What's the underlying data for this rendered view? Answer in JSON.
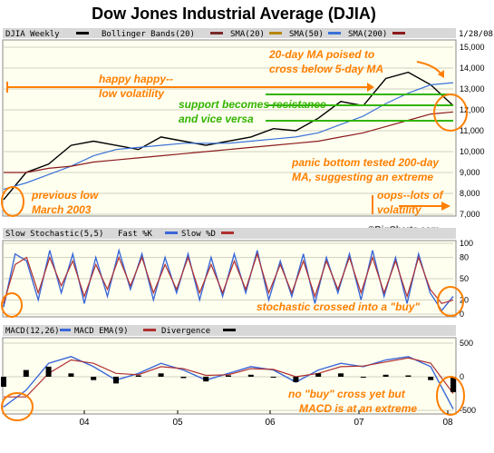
{
  "page_title": "Dow Jones Industrial Average (DJIA)",
  "watermark": "©BigCharts.com",
  "colors": {
    "brand_orange": "#ff7f00",
    "annotation_green": "#33b400",
    "panel_bg": "#fffff0",
    "legend_bg": "#d8d8d8",
    "price": "#000000",
    "bollinger": "#7a2a2a",
    "sma20": "#b8860b",
    "sma50": "#3a72d8",
    "sma200": "#8b1a1a",
    "fast_k": "#3b68d8",
    "slow_d": "#b03030",
    "macd": "#3b68d8",
    "signal": "#b03030",
    "divergence": "#000000"
  },
  "chart_data": [
    {
      "type": "line",
      "title": "DJIA Weekly",
      "date_label": "1/28/08",
      "legend": [
        "DJIA Weekly",
        "Bollinger Bands(20)",
        "SMA(20)",
        "SMA(50)",
        "SMA(200)"
      ],
      "x_ticks": [
        "04",
        "05",
        "06",
        "07",
        "08"
      ],
      "x": [
        "2003-03",
        "2003-06",
        "2003-09",
        "2003-12",
        "2004-03",
        "2004-06",
        "2004-09",
        "2004-12",
        "2005-03",
        "2005-06",
        "2005-09",
        "2005-12",
        "2006-03",
        "2006-06",
        "2006-09",
        "2006-12",
        "2007-03",
        "2007-06",
        "2007-09",
        "2007-12",
        "2008-01"
      ],
      "ylim": [
        7000,
        15000
      ],
      "y_ticks": [
        "15,000",
        "14,000",
        "13,000",
        "12,000",
        "11,000",
        "10,000",
        "9,000",
        "8,000",
        "7,000"
      ],
      "series": [
        {
          "name": "DJIA Weekly",
          "values": [
            7700,
            9000,
            9400,
            10300,
            10500,
            10300,
            10100,
            10700,
            10500,
            10300,
            10500,
            10700,
            11100,
            11000,
            11600,
            12400,
            12200,
            13500,
            13800,
            13200,
            12200
          ]
        },
        {
          "name": "SMA(50)",
          "values": [
            8200,
            8500,
            8900,
            9300,
            9800,
            10100,
            10200,
            10300,
            10400,
            10400,
            10400,
            10500,
            10600,
            10700,
            10900,
            11300,
            11700,
            12300,
            12800,
            13200,
            13300
          ]
        },
        {
          "name": "SMA(200)",
          "values": [
            9000,
            9000,
            9200,
            9300,
            9500,
            9600,
            9700,
            9800,
            9900,
            10000,
            10100,
            10200,
            10300,
            10400,
            10500,
            10700,
            10900,
            11200,
            11500,
            11800,
            11900
          ]
        }
      ],
      "annotations": [
        "happy happy--",
        "low volatility",
        "20-day MA poised to",
        "cross below 5-day MA",
        "support becomes resistance",
        "and vice versa",
        "panic bottom tested 200-day",
        "MA, suggesting an extreme",
        "previous low",
        "March 2003",
        "oops--lots of",
        "volatility"
      ]
    },
    {
      "type": "line",
      "title": "Slow Stochastic(5,5)",
      "legend": [
        "Slow Stochastic(5,5)",
        "Fast %K",
        "Slow %D"
      ],
      "ylim": [
        0,
        100
      ],
      "y_ticks": [
        "100",
        "80",
        "50",
        "20",
        "0"
      ],
      "series": [
        {
          "name": "Fast %K",
          "values": [
            10,
            85,
            75,
            20,
            90,
            30,
            85,
            15,
            80,
            25,
            90,
            35,
            85,
            20,
            80,
            30,
            85,
            20,
            80,
            25,
            85,
            30,
            90,
            20,
            75,
            25,
            85,
            15,
            80,
            30,
            85,
            20,
            90,
            25,
            80,
            15,
            85,
            30,
            5,
            25
          ]
        },
        {
          "name": "Slow %D",
          "values": [
            15,
            70,
            80,
            30,
            80,
            40,
            75,
            25,
            70,
            35,
            80,
            40,
            80,
            30,
            70,
            35,
            80,
            30,
            70,
            30,
            75,
            35,
            85,
            30,
            70,
            30,
            75,
            25,
            75,
            35,
            80,
            30,
            80,
            30,
            75,
            25,
            80,
            35,
            15,
            20
          ]
        }
      ],
      "annotations": [
        "stochastic crossed into a \"buy\""
      ]
    },
    {
      "type": "line",
      "title": "MACD(12,26)",
      "legend": [
        "MACD(12,26)",
        "MACD EMA(9)",
        "Divergence"
      ],
      "ylim": [
        -500,
        500
      ],
      "y_ticks": [
        "500",
        "0",
        "-500"
      ],
      "series": [
        {
          "name": "MACD(12,26)",
          "values": [
            -450,
            -200,
            200,
            300,
            150,
            -50,
            50,
            200,
            100,
            -50,
            50,
            150,
            100,
            -80,
            100,
            200,
            150,
            250,
            300,
            150,
            -480
          ]
        },
        {
          "name": "MACD EMA(9)",
          "values": [
            -300,
            -300,
            50,
            250,
            200,
            50,
            30,
            150,
            120,
            20,
            30,
            120,
            110,
            0,
            50,
            150,
            160,
            220,
            280,
            200,
            -250
          ]
        }
      ],
      "annotations": [
        "no \"buy\" cross yet but",
        "MACD is at an extreme"
      ]
    }
  ]
}
